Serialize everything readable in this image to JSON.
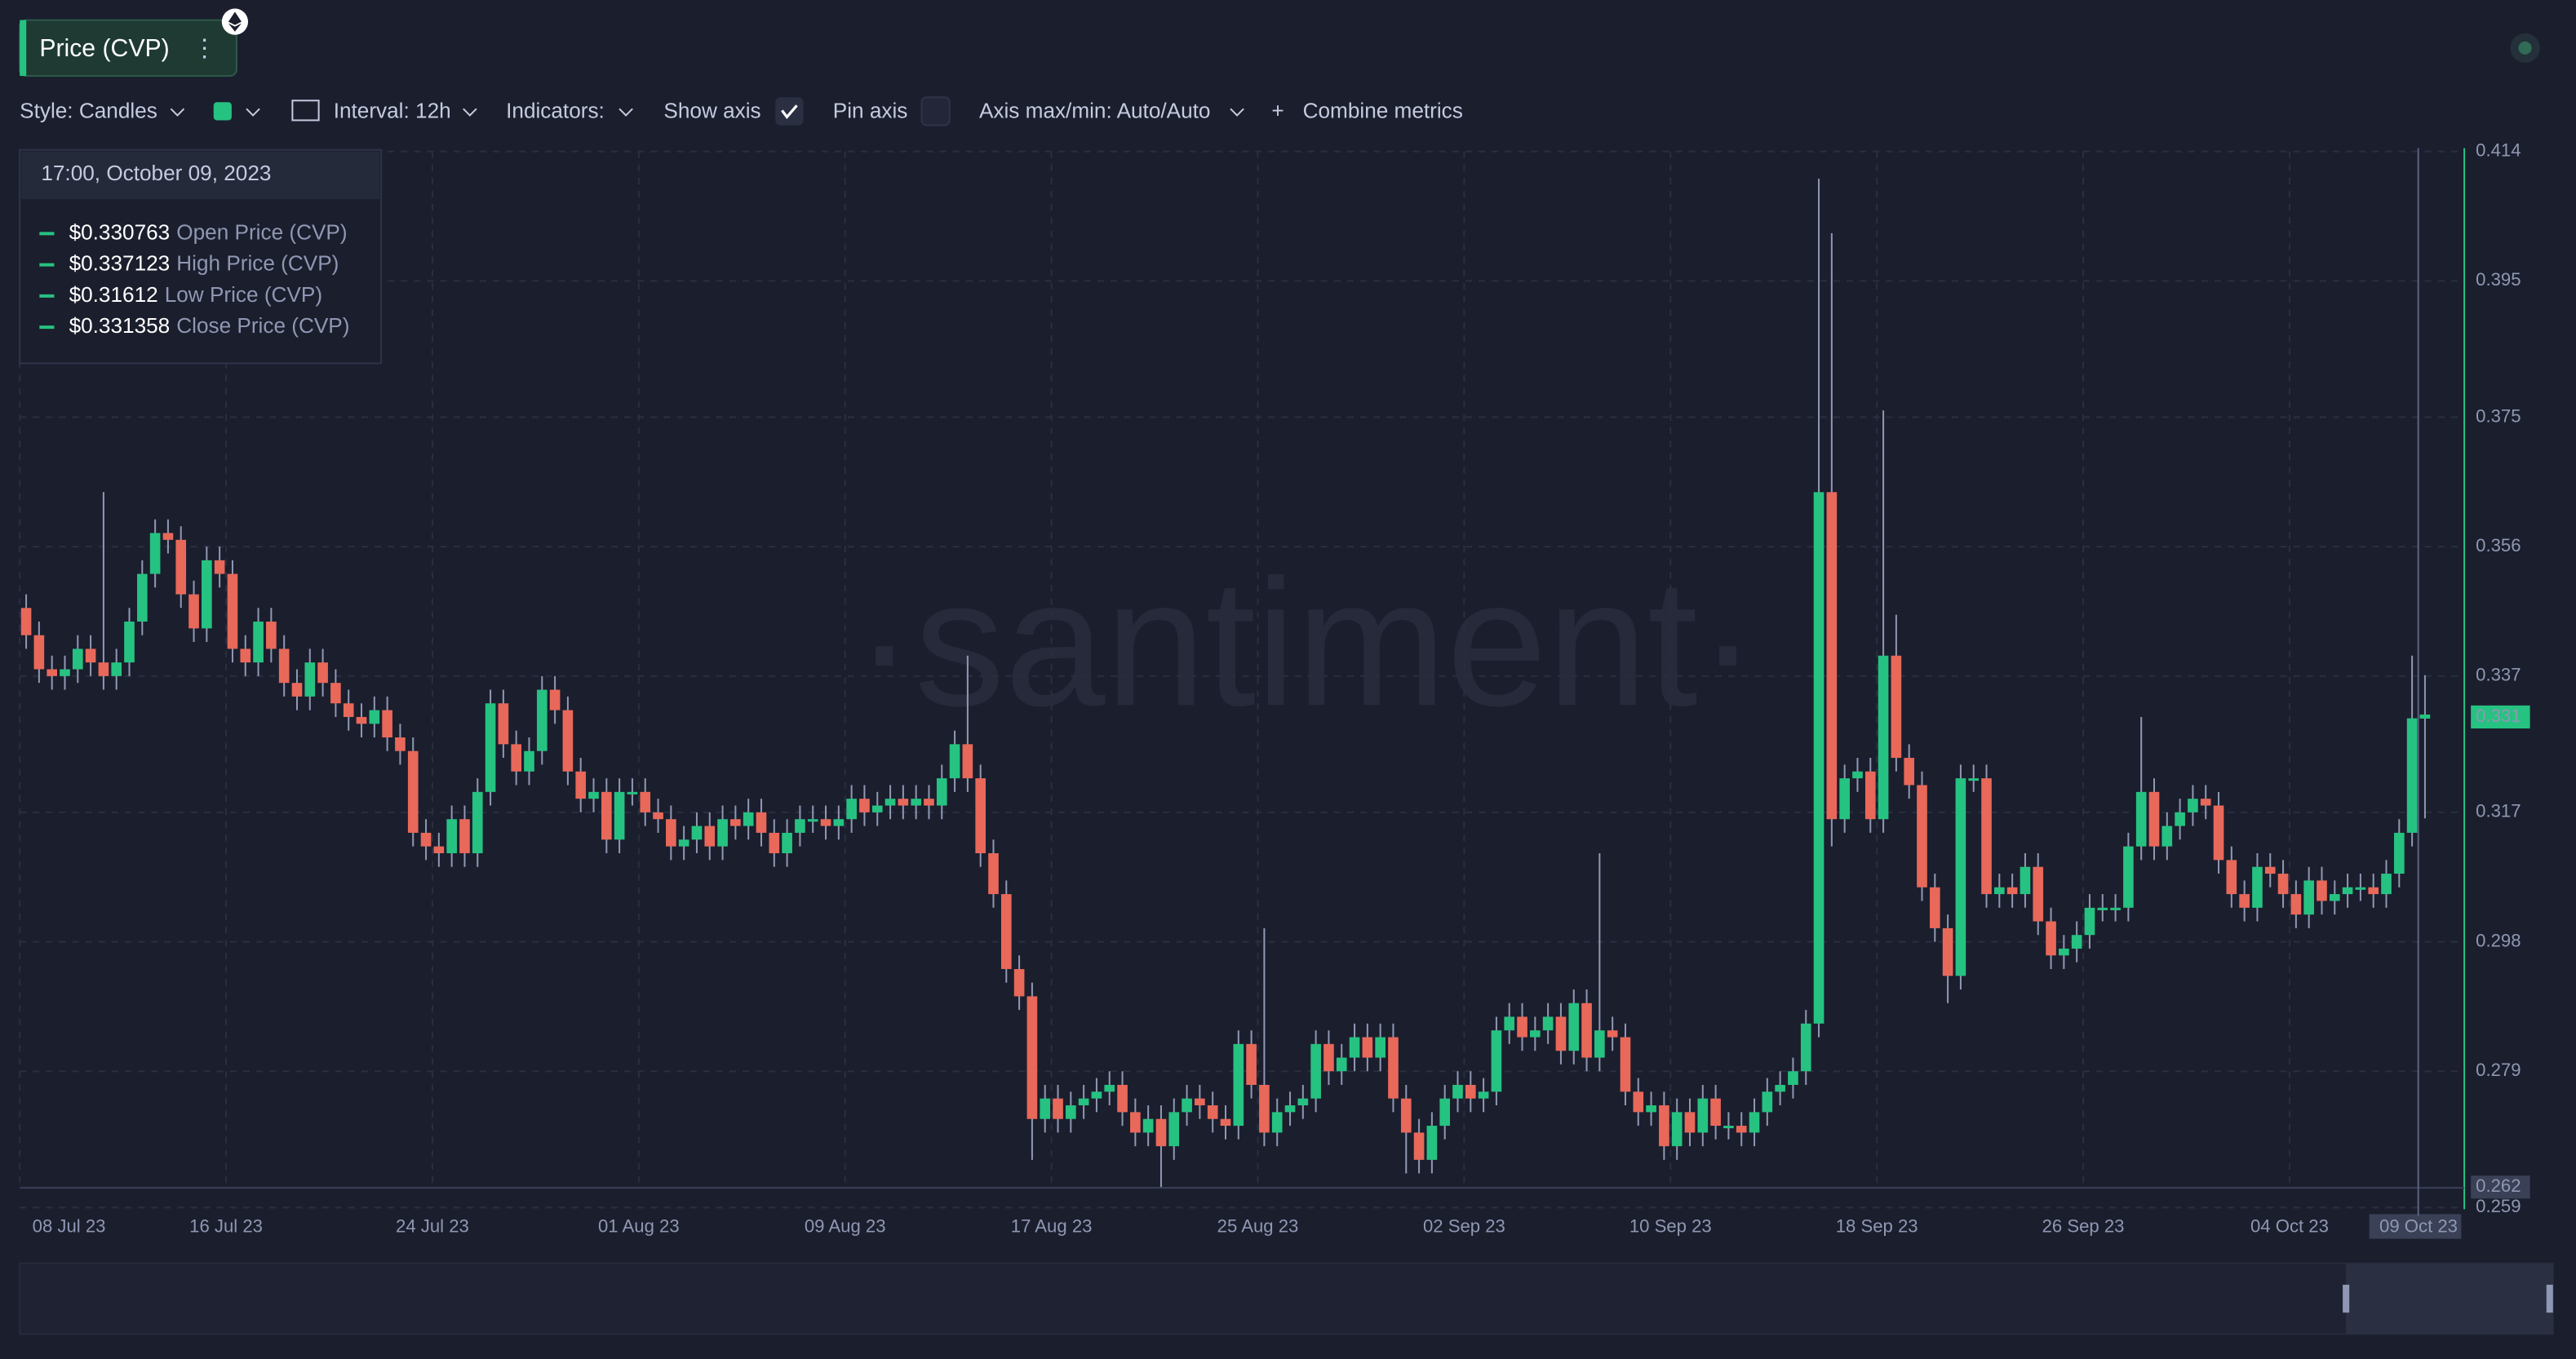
{
  "toolbar": {
    "metric": "Price (CVP)",
    "style": "Style: Candles",
    "interval": "Interval: 12h",
    "indicators": "Indicators:",
    "show_axis": "Show axis",
    "pin_axis": "Pin axis",
    "axis_minmax": "Axis max/min: Auto/Auto",
    "combine": "Combine metrics"
  },
  "chart_data": {
    "type": "candlestick",
    "watermark": "·santiment·",
    "up_color": "#26c281",
    "down_color": "#e8685a",
    "grid": true,
    "tooltip": {
      "date": "17:00, October 09, 2023",
      "rows": [
        {
          "value": "$0.330763",
          "label": "Open Price (CVP)"
        },
        {
          "value": "$0.337123",
          "label": "High Price (CVP)"
        },
        {
          "value": "$0.31612",
          "label": "Low Price (CVP)"
        },
        {
          "value": "$0.331358",
          "label": "Close Price (CVP)"
        }
      ]
    },
    "ylim": [
      0.259,
      0.414
    ],
    "yticks": [
      0.259,
      0.279,
      0.298,
      0.317,
      0.337,
      0.356,
      0.375,
      0.395,
      0.414
    ],
    "last_value": 0.331,
    "min_value": 0.262,
    "xlim": [
      0,
      187
    ],
    "xticks": [
      {
        "value": 0,
        "label": "08 Jul 23"
      },
      {
        "value": 16,
        "label": "16 Jul 23"
      },
      {
        "value": 32,
        "label": "24 Jul 23"
      },
      {
        "value": 48,
        "label": "01 Aug 23"
      },
      {
        "value": 64,
        "label": "09 Aug 23"
      },
      {
        "value": 80,
        "label": "17 Aug 23"
      },
      {
        "value": 96,
        "label": "25 Aug 23"
      },
      {
        "value": 112,
        "label": "02 Sep 23"
      },
      {
        "value": 128,
        "label": "10 Sep 23"
      },
      {
        "value": 144,
        "label": "18 Sep 23"
      },
      {
        "value": 160,
        "label": "26 Sep 23"
      },
      {
        "value": 176,
        "label": "04 Oct 23"
      },
      {
        "value": 186,
        "label": "09 Oct 23"
      }
    ],
    "open": [
      0.347,
      0.343,
      0.338,
      0.337,
      0.338,
      0.341,
      0.339,
      0.337,
      0.339,
      0.345,
      0.352,
      0.358,
      0.357,
      0.349,
      0.344,
      0.354,
      0.352,
      0.341,
      0.339,
      0.345,
      0.341,
      0.336,
      0.334,
      0.339,
      0.336,
      0.333,
      0.331,
      0.33,
      0.332,
      0.328,
      0.326,
      0.314,
      0.312,
      0.311,
      0.316,
      0.311,
      0.32,
      0.333,
      0.327,
      0.323,
      0.326,
      0.335,
      0.332,
      0.323,
      0.319,
      0.32,
      0.313,
      0.32,
      0.32,
      0.317,
      0.316,
      0.312,
      0.313,
      0.315,
      0.312,
      0.316,
      0.315,
      0.317,
      0.314,
      0.311,
      0.314,
      0.316,
      0.316,
      0.315,
      0.316,
      0.319,
      0.317,
      0.318,
      0.319,
      0.318,
      0.319,
      0.318,
      0.322,
      0.327,
      0.322,
      0.311,
      0.305,
      0.294,
      0.29,
      0.272,
      0.275,
      0.272,
      0.274,
      0.275,
      0.276,
      0.277,
      0.273,
      0.27,
      0.272,
      0.268,
      0.273,
      0.275,
      0.274,
      0.272,
      0.271,
      0.283,
      0.277,
      0.27,
      0.273,
      0.274,
      0.275,
      0.283,
      0.279,
      0.281,
      0.284,
      0.281,
      0.284,
      0.275,
      0.27,
      0.266,
      0.271,
      0.275,
      0.277,
      0.275,
      0.276,
      0.285,
      0.287,
      0.284,
      0.285,
      0.287,
      0.282,
      0.289,
      0.281,
      0.285,
      0.284,
      0.276,
      0.273,
      0.274,
      0.268,
      0.273,
      0.27,
      0.275,
      0.271,
      0.271,
      0.27,
      0.273,
      0.276,
      0.277,
      0.279,
      0.286,
      0.364,
      0.316,
      0.322,
      0.323,
      0.316,
      0.34,
      0.325,
      0.321,
      0.306,
      0.3,
      0.293,
      0.322,
      0.322,
      0.305,
      0.306,
      0.305,
      0.309,
      0.301,
      0.296,
      0.297,
      0.299,
      0.303,
      0.303,
      0.303,
      0.312,
      0.32,
      0.312,
      0.315,
      0.317,
      0.319,
      0.318,
      0.31,
      0.305,
      0.303,
      0.309,
      0.308,
      0.305,
      0.302,
      0.307,
      0.304,
      0.305,
      0.306,
      0.306,
      0.305,
      0.308,
      0.314,
      0.330763
    ],
    "high": [
      0.349,
      0.345,
      0.34,
      0.34,
      0.343,
      0.343,
      0.364,
      0.341,
      0.347,
      0.354,
      0.36,
      0.36,
      0.359,
      0.351,
      0.356,
      0.356,
      0.354,
      0.343,
      0.347,
      0.347,
      0.343,
      0.338,
      0.341,
      0.341,
      0.338,
      0.335,
      0.333,
      0.334,
      0.334,
      0.33,
      0.328,
      0.316,
      0.314,
      0.318,
      0.318,
      0.322,
      0.335,
      0.335,
      0.329,
      0.328,
      0.337,
      0.337,
      0.334,
      0.325,
      0.322,
      0.322,
      0.322,
      0.322,
      0.322,
      0.319,
      0.318,
      0.315,
      0.317,
      0.317,
      0.318,
      0.318,
      0.319,
      0.319,
      0.316,
      0.316,
      0.318,
      0.318,
      0.318,
      0.318,
      0.321,
      0.321,
      0.32,
      0.321,
      0.321,
      0.321,
      0.321,
      0.324,
      0.329,
      0.34,
      0.324,
      0.313,
      0.307,
      0.296,
      0.292,
      0.277,
      0.277,
      0.276,
      0.277,
      0.278,
      0.279,
      0.279,
      0.275,
      0.274,
      0.274,
      0.275,
      0.277,
      0.277,
      0.276,
      0.274,
      0.285,
      0.285,
      0.3,
      0.275,
      0.276,
      0.277,
      0.285,
      0.285,
      0.283,
      0.286,
      0.286,
      0.286,
      0.286,
      0.277,
      0.272,
      0.273,
      0.277,
      0.279,
      0.279,
      0.278,
      0.287,
      0.289,
      0.289,
      0.287,
      0.289,
      0.289,
      0.291,
      0.291,
      0.311,
      0.287,
      0.286,
      0.278,
      0.276,
      0.276,
      0.275,
      0.275,
      0.277,
      0.277,
      0.273,
      0.273,
      0.275,
      0.278,
      0.279,
      0.281,
      0.288,
      0.41,
      0.402,
      0.324,
      0.325,
      0.325,
      0.376,
      0.346,
      0.327,
      0.323,
      0.308,
      0.302,
      0.324,
      0.324,
      0.324,
      0.308,
      0.308,
      0.311,
      0.311,
      0.303,
      0.299,
      0.301,
      0.305,
      0.305,
      0.305,
      0.314,
      0.331,
      0.322,
      0.317,
      0.319,
      0.321,
      0.321,
      0.32,
      0.312,
      0.307,
      0.311,
      0.311,
      0.31,
      0.307,
      0.309,
      0.309,
      0.307,
      0.308,
      0.308,
      0.308,
      0.31,
      0.316,
      0.34,
      0.337123
    ],
    "low": [
      0.341,
      0.336,
      0.335,
      0.335,
      0.336,
      0.337,
      0.335,
      0.335,
      0.337,
      0.343,
      0.35,
      0.355,
      0.347,
      0.342,
      0.342,
      0.35,
      0.339,
      0.337,
      0.337,
      0.339,
      0.334,
      0.332,
      0.332,
      0.334,
      0.331,
      0.329,
      0.328,
      0.328,
      0.326,
      0.324,
      0.312,
      0.31,
      0.309,
      0.309,
      0.309,
      0.309,
      0.318,
      0.325,
      0.321,
      0.321,
      0.324,
      0.33,
      0.321,
      0.317,
      0.317,
      0.311,
      0.311,
      0.318,
      0.315,
      0.314,
      0.31,
      0.31,
      0.311,
      0.31,
      0.31,
      0.313,
      0.313,
      0.312,
      0.309,
      0.309,
      0.312,
      0.314,
      0.313,
      0.313,
      0.314,
      0.315,
      0.315,
      0.316,
      0.316,
      0.316,
      0.316,
      0.316,
      0.32,
      0.32,
      0.309,
      0.303,
      0.292,
      0.288,
      0.266,
      0.27,
      0.27,
      0.27,
      0.272,
      0.273,
      0.274,
      0.271,
      0.268,
      0.268,
      0.262,
      0.266,
      0.271,
      0.272,
      0.27,
      0.269,
      0.269,
      0.275,
      0.268,
      0.268,
      0.271,
      0.272,
      0.273,
      0.277,
      0.277,
      0.279,
      0.279,
      0.279,
      0.273,
      0.264,
      0.264,
      0.264,
      0.269,
      0.273,
      0.273,
      0.273,
      0.274,
      0.283,
      0.282,
      0.282,
      0.283,
      0.28,
      0.28,
      0.279,
      0.279,
      0.282,
      0.274,
      0.271,
      0.271,
      0.266,
      0.266,
      0.268,
      0.268,
      0.269,
      0.269,
      0.268,
      0.268,
      0.271,
      0.274,
      0.275,
      0.277,
      0.284,
      0.312,
      0.314,
      0.32,
      0.314,
      0.314,
      0.323,
      0.319,
      0.304,
      0.298,
      0.289,
      0.291,
      0.32,
      0.303,
      0.303,
      0.303,
      0.303,
      0.299,
      0.294,
      0.294,
      0.295,
      0.297,
      0.301,
      0.301,
      0.301,
      0.31,
      0.31,
      0.31,
      0.313,
      0.315,
      0.316,
      0.308,
      0.303,
      0.301,
      0.301,
      0.306,
      0.303,
      0.3,
      0.3,
      0.302,
      0.302,
      0.303,
      0.304,
      0.303,
      0.303,
      0.306,
      0.312,
      0.31612
    ],
    "close": [
      0.343,
      0.338,
      0.337,
      0.338,
      0.341,
      0.339,
      0.337,
      0.339,
      0.345,
      0.352,
      0.358,
      0.357,
      0.349,
      0.344,
      0.354,
      0.352,
      0.341,
      0.339,
      0.345,
      0.341,
      0.336,
      0.334,
      0.339,
      0.336,
      0.333,
      0.331,
      0.33,
      0.332,
      0.328,
      0.326,
      0.314,
      0.312,
      0.311,
      0.316,
      0.311,
      0.32,
      0.333,
      0.327,
      0.323,
      0.326,
      0.335,
      0.332,
      0.323,
      0.319,
      0.32,
      0.313,
      0.32,
      0.32,
      0.317,
      0.316,
      0.312,
      0.313,
      0.315,
      0.312,
      0.316,
      0.315,
      0.317,
      0.314,
      0.311,
      0.314,
      0.316,
      0.316,
      0.315,
      0.316,
      0.319,
      0.317,
      0.318,
      0.319,
      0.318,
      0.319,
      0.318,
      0.322,
      0.327,
      0.322,
      0.311,
      0.305,
      0.294,
      0.29,
      0.272,
      0.275,
      0.272,
      0.274,
      0.275,
      0.276,
      0.277,
      0.273,
      0.27,
      0.272,
      0.268,
      0.273,
      0.275,
      0.274,
      0.272,
      0.271,
      0.283,
      0.277,
      0.27,
      0.273,
      0.274,
      0.275,
      0.283,
      0.279,
      0.281,
      0.284,
      0.281,
      0.284,
      0.275,
      0.27,
      0.266,
      0.271,
      0.275,
      0.277,
      0.275,
      0.276,
      0.285,
      0.287,
      0.284,
      0.285,
      0.287,
      0.282,
      0.289,
      0.281,
      0.285,
      0.284,
      0.276,
      0.273,
      0.274,
      0.268,
      0.273,
      0.27,
      0.275,
      0.271,
      0.271,
      0.27,
      0.273,
      0.276,
      0.277,
      0.279,
      0.286,
      0.364,
      0.316,
      0.322,
      0.323,
      0.316,
      0.34,
      0.325,
      0.321,
      0.306,
      0.3,
      0.293,
      0.322,
      0.322,
      0.305,
      0.306,
      0.305,
      0.309,
      0.301,
      0.296,
      0.297,
      0.299,
      0.303,
      0.303,
      0.303,
      0.312,
      0.32,
      0.312,
      0.315,
      0.317,
      0.319,
      0.318,
      0.31,
      0.305,
      0.303,
      0.309,
      0.308,
      0.305,
      0.302,
      0.307,
      0.304,
      0.305,
      0.306,
      0.306,
      0.305,
      0.308,
      0.314,
      0.3308,
      0.331358
    ]
  }
}
